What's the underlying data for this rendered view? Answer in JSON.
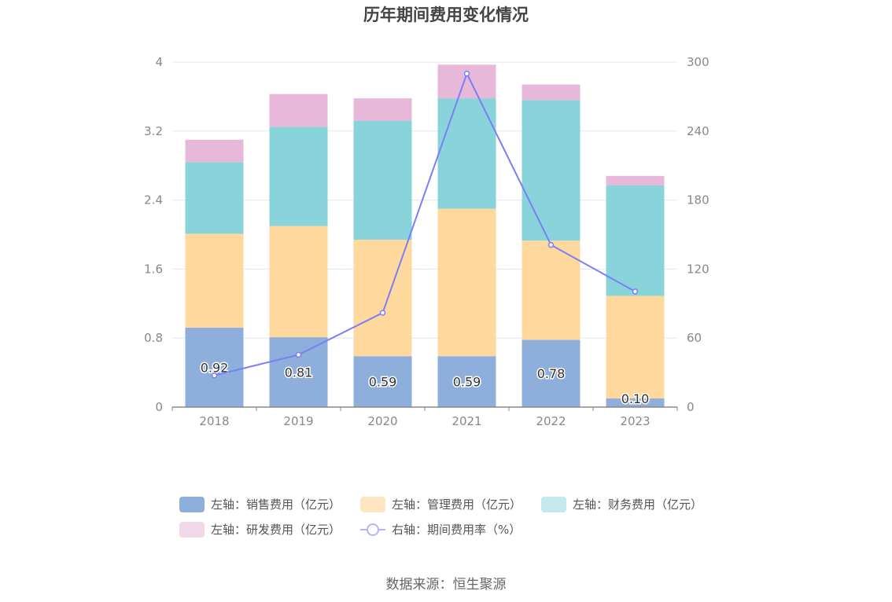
{
  "chart_data": {
    "type": "bar",
    "title": "历年期间费用变化情况",
    "categories": [
      "2018",
      "2019",
      "2020",
      "2021",
      "2022",
      "2023"
    ],
    "stacked": true,
    "left_axis": {
      "min": 0,
      "max": 4,
      "ticks": [
        "0",
        "0.8",
        "1.6",
        "2.4",
        "3.2",
        "4"
      ]
    },
    "right_axis": {
      "min": 0,
      "max": 300,
      "ticks": [
        "0",
        "60",
        "120",
        "180",
        "240",
        "300"
      ]
    },
    "series": [
      {
        "name": "左轴：销售费用（亿元）",
        "type": "bar",
        "axis": "left",
        "color": "#8eaedb",
        "values": [
          0.92,
          0.81,
          0.59,
          0.59,
          0.78,
          0.1
        ],
        "labels": [
          "0.92",
          "0.81",
          "0.59",
          "0.59",
          "0.78",
          "0.10"
        ]
      },
      {
        "name": "左轴：管理费用（亿元）",
        "type": "bar",
        "axis": "left",
        "color": "#fed89c",
        "values": [
          1.09,
          1.29,
          1.35,
          1.71,
          1.15,
          1.19
        ]
      },
      {
        "name": "左轴：财务费用（亿元）",
        "type": "bar",
        "axis": "left",
        "color": "#88d4da",
        "values": [
          0.83,
          1.15,
          1.38,
          1.28,
          1.63,
          1.28
        ]
      },
      {
        "name": "左轴：研发费用（亿元）",
        "type": "bar",
        "axis": "left",
        "color": "#e7b8d9",
        "values": [
          0.26,
          0.38,
          0.26,
          0.39,
          0.18,
          0.11
        ]
      },
      {
        "name": "右轴：期间费用率（%）",
        "type": "line",
        "axis": "right",
        "color": "#7b7ff5",
        "values": [
          27.5,
          45.5,
          82,
          290,
          141,
          100.5
        ]
      }
    ],
    "source": "数据来源：恒生聚源"
  }
}
